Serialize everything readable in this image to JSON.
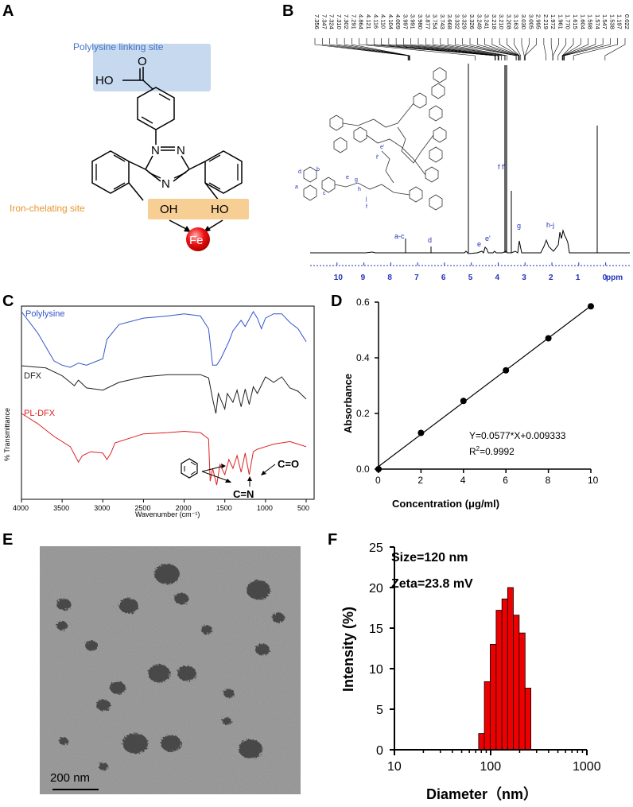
{
  "panels": {
    "A": {
      "letter": "A",
      "polylysine_label": "Polylysine linking site",
      "iron_label": "Iron-chelating site",
      "ho": "HO",
      "oh1": "OH",
      "ho2": "HO",
      "n1": "N",
      "n2": "N",
      "n3": "N",
      "fe": "Fe",
      "colors": {
        "blue_box": "#c6d9ef",
        "orange_box": "#f7cf95",
        "blue_text": "#4472c4",
        "orange_text": "#e8962e",
        "fe": "#e60000"
      }
    },
    "B": {
      "letter": "B",
      "peak_list": [
        "7.356",
        "7.347",
        "7.324",
        "7.310",
        "7.302",
        "7.291",
        "4.864",
        "4.121",
        "4.116",
        "4.110",
        "4.104",
        "4.009",
        "3.997",
        "3.991",
        "3.980",
        "3.877",
        "3.754",
        "3.743",
        "3.668",
        "3.332",
        "3.329",
        "3.326",
        "3.249",
        "3.241",
        "3.218",
        "3.210",
        "3.208",
        "3.163",
        "3.030",
        "3.005",
        "2.995",
        "2.219",
        "1.972",
        "1.961",
        "1.770",
        "1.615",
        "1.604",
        "1.598",
        "1.574",
        "1.547",
        "1.538",
        "1.197",
        "0.022"
      ],
      "annotations": {
        "ac": "a-c",
        "d": "d",
        "e": "e",
        "e2": "e'",
        "g": "g",
        "ff": "f f'",
        "hj": "h-j"
      },
      "struct_labels": {
        "a": "a",
        "b": "b",
        "c": "c",
        "d": "d",
        "e": "e",
        "g": "g",
        "h": "h",
        "j": "j",
        "f": "f",
        "f2": "f'",
        "e2": "e'"
      },
      "axis_ticks": [
        "10",
        "9",
        "8",
        "7",
        "6",
        "5",
        "4",
        "3",
        "2",
        "1",
        "0"
      ],
      "axis_unit": "ppm"
    },
    "C": {
      "letter": "C",
      "ylabel": "% Transmittance",
      "xlabel": "Wavenumber (cm⁻¹)",
      "xticks": [
        "4000",
        "3500",
        "3000",
        "2500",
        "2000",
        "1500",
        "1000",
        "500"
      ],
      "series": [
        {
          "name": "Polylysine",
          "color": "#3355cc"
        },
        {
          "name": "DFX",
          "color": "#222222"
        },
        {
          "name": "PL-DFX",
          "color": "#dd2222"
        }
      ],
      "annot_cn": "C=N",
      "annot_co": "C=O"
    },
    "D": {
      "letter": "D",
      "equation": "Y=0.0577*X+0.009333",
      "r2_prefix": "R",
      "r2_sup": "2",
      "r2_rest": "=0.9992"
    },
    "E": {
      "letter": "E",
      "scalebar": "200 nm"
    },
    "F": {
      "letter": "F",
      "size": "Size=120 nm",
      "zeta": "Zeta=23.8 mV"
    }
  },
  "chart_data": [
    {
      "panel": "D",
      "type": "scatter",
      "xlabel": "Concentration (μg/ml)",
      "ylabel": "Absorbance",
      "x": [
        0,
        2,
        4,
        6,
        8,
        10
      ],
      "y": [
        0.0,
        0.13,
        0.245,
        0.355,
        0.47,
        0.585
      ],
      "xlim": [
        0,
        10
      ],
      "ylim": [
        0,
        0.6
      ],
      "xticks": [
        0,
        2,
        4,
        6,
        8,
        10
      ],
      "yticks": [
        0.0,
        0.2,
        0.4,
        0.6
      ],
      "fit_line": {
        "slope": 0.0577,
        "intercept": 0.009333
      },
      "grid": false
    },
    {
      "panel": "F",
      "type": "bar",
      "xlabel": "Diameter（nm）",
      "ylabel": "Intensity (%)",
      "x_scale": "log",
      "xlim": [
        10,
        1000
      ],
      "ylim": [
        0,
        25
      ],
      "xticks": [
        10,
        100,
        1000
      ],
      "yticks": [
        0,
        5,
        10,
        15,
        20,
        25
      ],
      "bin_edges": [
        75,
        86,
        99,
        114,
        131,
        150,
        172,
        198,
        228,
        262
      ],
      "values": [
        2,
        8.4,
        13,
        17.2,
        18.6,
        20,
        16.6,
        14.4,
        7.6,
        2
      ],
      "bar_color": "#ee0000",
      "grid": false
    },
    {
      "panel": "C",
      "type": "line",
      "xlabel": "Wavenumber (cm⁻¹)",
      "ylabel": "% Transmittance",
      "x_reversed": true,
      "xlim": [
        4000,
        500
      ],
      "xticks": [
        4000,
        3500,
        3000,
        2500,
        2000,
        1500,
        1000,
        500
      ],
      "series": [
        {
          "name": "Polylysine",
          "x": [
            4000,
            3800,
            3600,
            3500,
            3400,
            3300,
            3200,
            3000,
            2950,
            2800,
            2500,
            2200,
            2000,
            1800,
            1700,
            1650,
            1600,
            1550,
            1500,
            1450,
            1400,
            1300,
            1250,
            1150,
            1100,
            1050,
            1000,
            900,
            800,
            700,
            600,
            500
          ],
          "y": [
            98,
            88,
            75,
            73,
            72,
            74,
            73,
            76,
            85,
            92,
            95,
            96,
            97,
            96,
            90,
            73,
            73,
            76,
            80,
            84,
            89,
            94,
            91,
            98,
            95,
            90,
            95,
            97,
            97,
            93,
            90,
            84
          ]
        },
        {
          "name": "DFX",
          "x": [
            4000,
            3700,
            3500,
            3400,
            3350,
            3300,
            3200,
            3000,
            2800,
            2500,
            2200,
            2000,
            1800,
            1700,
            1650,
            1610,
            1580,
            1500,
            1470,
            1400,
            1350,
            1300,
            1250,
            1200,
            1150,
            1100,
            1000,
            900,
            800,
            700,
            600,
            500
          ],
          "y": [
            55,
            53,
            46,
            40,
            37,
            42,
            35,
            33,
            40,
            45,
            47,
            47,
            47,
            44,
            25,
            12,
            30,
            16,
            30,
            22,
            33,
            18,
            34,
            20,
            36,
            30,
            45,
            40,
            45,
            35,
            32,
            25
          ]
        },
        {
          "name": "PL-DFX",
          "x": [
            4000,
            3800,
            3600,
            3400,
            3300,
            3250,
            3150,
            3000,
            2950,
            2900,
            2850,
            2500,
            2200,
            2000,
            1800,
            1700,
            1680,
            1650,
            1600,
            1560,
            1500,
            1450,
            1400,
            1350,
            1300,
            1250,
            1200,
            1150,
            1100,
            1000,
            900,
            800,
            700,
            600,
            500
          ],
          "y": [
            28,
            20,
            10,
            2,
            -10,
            -5,
            -2,
            -3,
            -8,
            -3,
            5,
            12,
            13,
            14,
            13,
            8,
            -25,
            -15,
            -28,
            -12,
            -20,
            -8,
            -15,
            -5,
            -18,
            -3,
            -20,
            -2,
            0,
            2,
            4,
            5,
            6,
            4,
            2
          ]
        }
      ]
    }
  ]
}
